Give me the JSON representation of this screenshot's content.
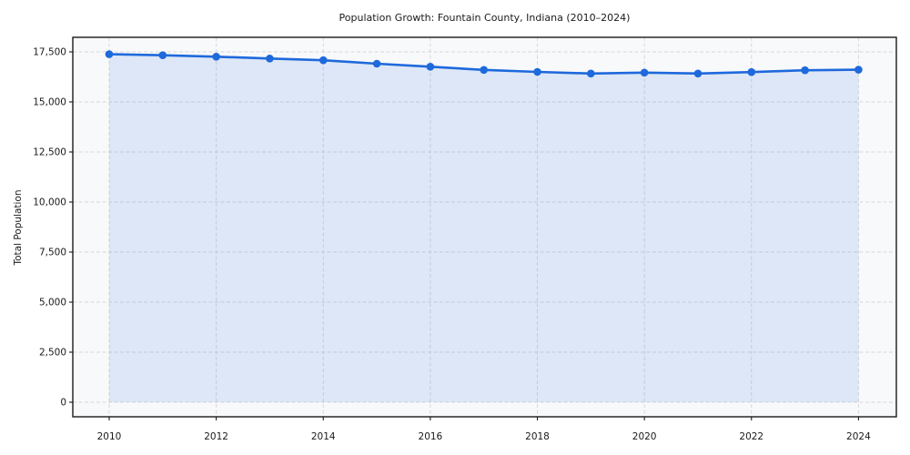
{
  "chart_data": {
    "type": "line",
    "title": "Population Growth: Fountain County, Indiana (2010–2024)",
    "xlabel": "",
    "ylabel": "Total Population",
    "x": [
      2010,
      2011,
      2012,
      2013,
      2014,
      2015,
      2016,
      2017,
      2018,
      2019,
      2020,
      2021,
      2022,
      2023,
      2024
    ],
    "series": [
      {
        "name": "Total Population",
        "values": [
          17380,
          17330,
          17260,
          17170,
          17080,
          16910,
          16760,
          16600,
          16500,
          16420,
          16465,
          16420,
          16490,
          16580,
          16610
        ]
      }
    ],
    "xticks": [
      2010,
      2012,
      2014,
      2016,
      2018,
      2020,
      2022,
      2024
    ],
    "yticks": [
      0,
      2500,
      5000,
      7500,
      10000,
      12500,
      15000,
      17500
    ],
    "ylim": [
      0,
      17500
    ],
    "xlim": [
      2010,
      2024
    ],
    "grid": true,
    "grid_style": "dashed",
    "legend": false,
    "area_fill": true,
    "marker": "circle",
    "colors": {
      "line": "#1e69dc",
      "marker": "#1e69dc",
      "area": "rgba(30, 105, 220, 0.12)",
      "grid": "#d8d8d8",
      "spine": "#1a1a1a",
      "plot_background": "#f8f9fb",
      "figure_background": "#ffffff",
      "tick_text": "#1a1a1a"
    }
  }
}
